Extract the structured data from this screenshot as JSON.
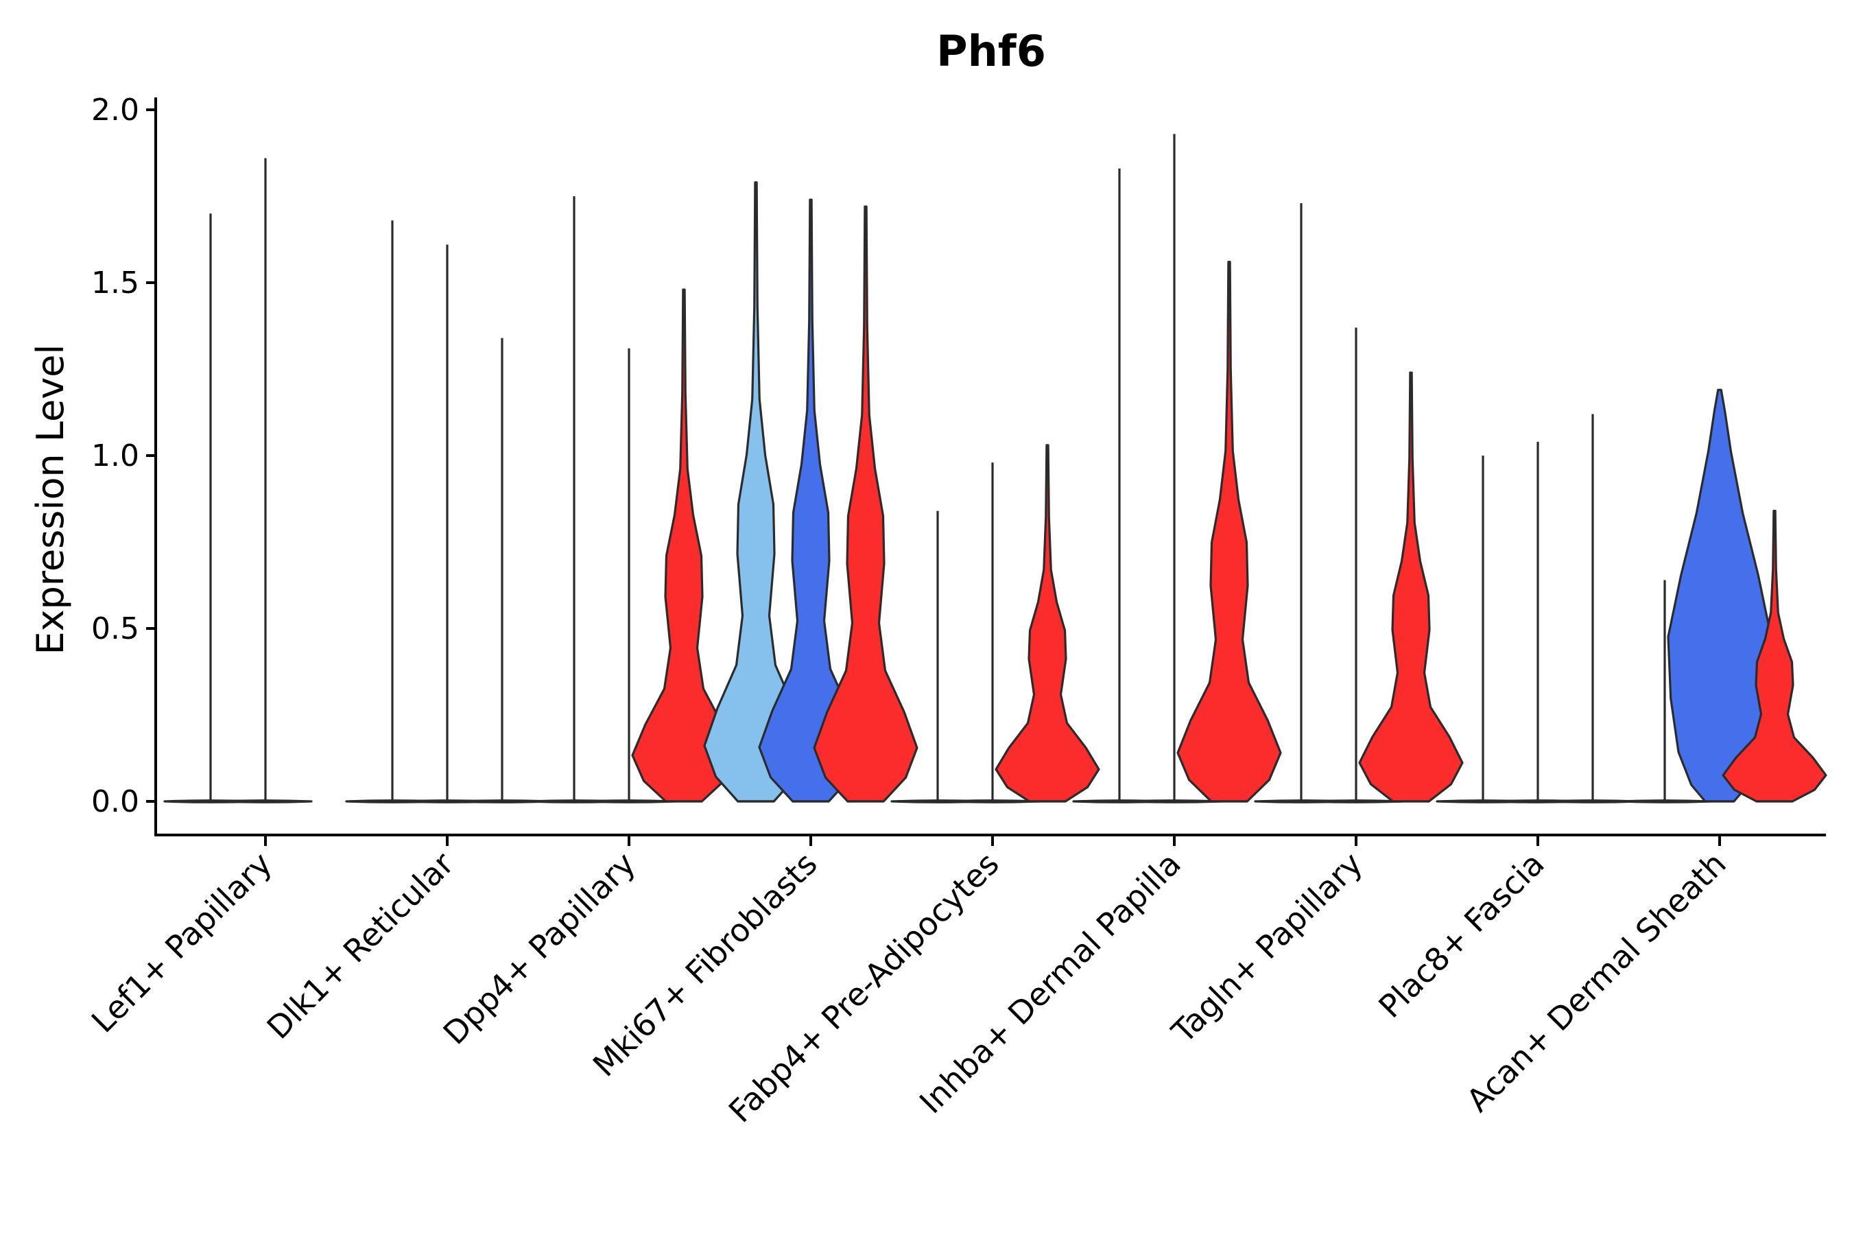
{
  "chart_data": {
    "type": "violin",
    "title": "Phf6",
    "xlabel": "",
    "ylabel": "Expression Level",
    "ylim": [
      -0.1,
      2.05
    ],
    "yticks": [
      0.0,
      0.5,
      1.0,
      1.5,
      2.0
    ],
    "ytick_labels": [
      "0.0",
      "0.5",
      "1.0",
      "1.5",
      "2.0"
    ],
    "categories": [
      "Lef1+ Papillary",
      "Dlk1+ Reticular",
      "Dpp4+ Papillary",
      "Mki67+ Fibroblasts",
      "Fabp4+ Pre-Adipocytes",
      "Inhba+ Dermal Papilla",
      "Tagln+ Papillary",
      "Plac8+ Fascia",
      "Acan+ Dermal Sheath"
    ],
    "series_colors": [
      "#85c1ec",
      "#4570ec",
      "#fa2c2c"
    ],
    "violins": [
      {
        "category": 0,
        "slot": 0,
        "max": 1.7,
        "shape": "flat"
      },
      {
        "category": 0,
        "slot": 1,
        "max": 1.86,
        "shape": "flat"
      },
      {
        "category": 1,
        "slot": 0,
        "max": 1.68,
        "shape": "flat"
      },
      {
        "category": 1,
        "slot": 1,
        "max": 1.61,
        "shape": "flat"
      },
      {
        "category": 1,
        "slot": 2,
        "max": 1.34,
        "shape": "flat"
      },
      {
        "category": 2,
        "slot": 0,
        "max": 1.75,
        "shape": "flat"
      },
      {
        "category": 2,
        "slot": 1,
        "max": 1.31,
        "shape": "flat"
      },
      {
        "category": 2,
        "slot": 2,
        "max": 1.48,
        "shape": "bimodal",
        "series": 2
      },
      {
        "category": 3,
        "slot": 0,
        "max": 1.79,
        "shape": "bimodal",
        "series": 0
      },
      {
        "category": 3,
        "slot": 1,
        "max": 1.74,
        "shape": "bimodal",
        "series": 1
      },
      {
        "category": 3,
        "slot": 2,
        "max": 1.72,
        "shape": "bimodal",
        "series": 2
      },
      {
        "category": 4,
        "slot": 0,
        "max": 0.84,
        "shape": "flat"
      },
      {
        "category": 4,
        "slot": 1,
        "max": 0.98,
        "shape": "flat"
      },
      {
        "category": 4,
        "slot": 2,
        "max": 1.03,
        "shape": "bimodal",
        "series": 2
      },
      {
        "category": 5,
        "slot": 0,
        "max": 1.83,
        "shape": "flat"
      },
      {
        "category": 5,
        "slot": 1,
        "max": 1.93,
        "shape": "flat"
      },
      {
        "category": 5,
        "slot": 2,
        "max": 1.56,
        "shape": "bimodal",
        "series": 2
      },
      {
        "category": 6,
        "slot": 0,
        "max": 1.73,
        "shape": "flat"
      },
      {
        "category": 6,
        "slot": 1,
        "max": 1.37,
        "shape": "flat"
      },
      {
        "category": 6,
        "slot": 2,
        "max": 1.24,
        "shape": "bimodal",
        "series": 2
      },
      {
        "category": 7,
        "slot": 0,
        "max": 1.0,
        "shape": "flat"
      },
      {
        "category": 7,
        "slot": 1,
        "max": 1.04,
        "shape": "flat"
      },
      {
        "category": 7,
        "slot": 2,
        "max": 1.12,
        "shape": "flat"
      },
      {
        "category": 8,
        "slot": 0,
        "max": 0.64,
        "shape": "flat"
      },
      {
        "category": 8,
        "slot": 1,
        "max": 1.19,
        "shape": "broad",
        "series": 1
      },
      {
        "category": 8,
        "slot": 2,
        "max": 0.84,
        "shape": "bimodal",
        "series": 2
      }
    ]
  }
}
